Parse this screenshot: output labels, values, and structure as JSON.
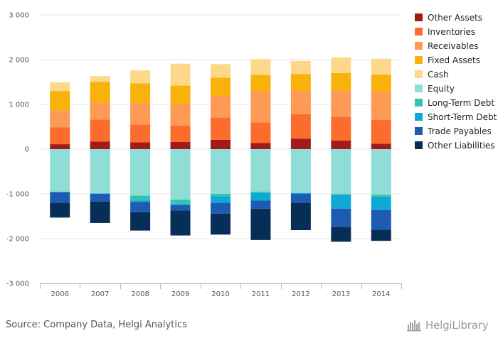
{
  "chart_data": {
    "type": "bar",
    "stacked": true,
    "categories": [
      "2006",
      "2007",
      "2008",
      "2009",
      "2010",
      "2011",
      "2012",
      "2013",
      "2014"
    ],
    "ylim": [
      -3000,
      3000
    ],
    "yticks": [
      -3000,
      -2000,
      -1000,
      0,
      1000,
      2000,
      3000
    ],
    "ytick_labels": [
      "-3 000",
      "-2 000",
      "-1 000",
      "0",
      "1 000",
      "2 000",
      "3 000"
    ],
    "grid": true,
    "legend_position": "right",
    "series": [
      {
        "name": "Other Assets",
        "color": "#a31a1a",
        "values": [
          110,
          170,
          150,
          160,
          210,
          140,
          230,
          190,
          120
        ]
      },
      {
        "name": "Inventories",
        "color": "#fc6c2c",
        "values": [
          380,
          490,
          400,
          370,
          500,
          460,
          550,
          530,
          530
        ]
      },
      {
        "name": "Receivables",
        "color": "#fd9a55",
        "values": [
          380,
          380,
          480,
          470,
          480,
          690,
          520,
          590,
          630
        ]
      },
      {
        "name": "Fixed Assets",
        "color": "#f9b10b",
        "values": [
          430,
          460,
          440,
          420,
          410,
          370,
          380,
          390,
          390
        ]
      },
      {
        "name": "Cash",
        "color": "#fdd88a",
        "values": [
          190,
          130,
          290,
          490,
          300,
          350,
          290,
          350,
          350
        ]
      },
      {
        "name": "Equity",
        "color": "#8fddd6",
        "values": [
          -960,
          -990,
          -1040,
          -1130,
          -1000,
          -950,
          -980,
          -1000,
          -1020
        ]
      },
      {
        "name": "Long-Term Debt",
        "color": "#32c4ae",
        "values": [
          0,
          0,
          -110,
          -90,
          -50,
          -30,
          0,
          -30,
          -40
        ]
      },
      {
        "name": "Short-Term Debt",
        "color": "#10a9d6",
        "values": [
          0,
          -10,
          -30,
          -30,
          -150,
          -170,
          -20,
          -300,
          -300
        ]
      },
      {
        "name": "Trade Payables",
        "color": "#1e5cb4",
        "values": [
          -240,
          -170,
          -230,
          -120,
          -240,
          -180,
          -200,
          -410,
          -440
        ]
      },
      {
        "name": "Other Liabilities",
        "color": "#062f58",
        "values": [
          -330,
          -480,
          -410,
          -560,
          -470,
          -700,
          -610,
          -330,
          -250
        ]
      }
    ]
  },
  "footer": {
    "source": "Source: Company Data, Helgi Analytics",
    "brand": "HelgiLibrary"
  },
  "icons": {
    "brand_logo": "helgi-library-logo-icon"
  }
}
